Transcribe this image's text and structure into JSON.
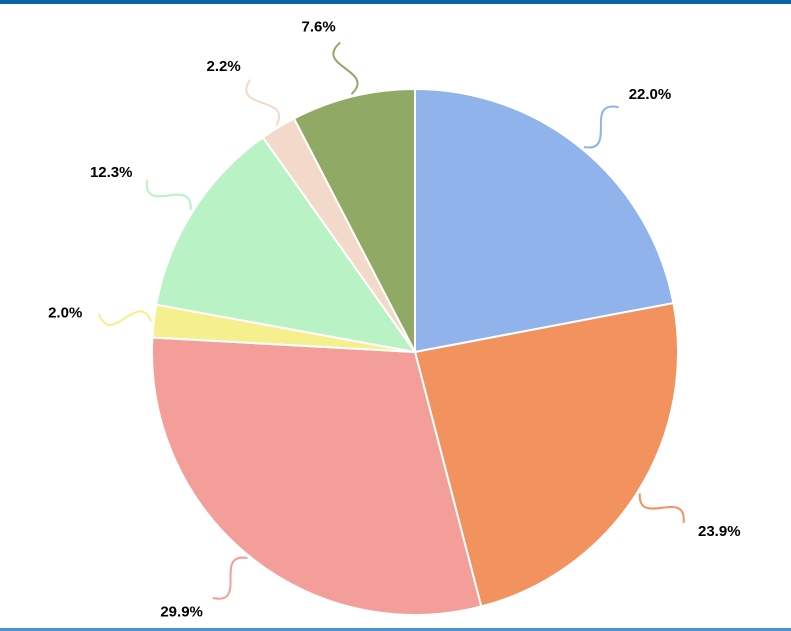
{
  "frame": {
    "top_border_color": "#0b63a8",
    "bottom_border_color": "#4e94d4",
    "background_color": "#ffffff"
  },
  "chart_data": {
    "type": "pie",
    "title": "",
    "legend_position": "none",
    "start_angle": "top",
    "direction": "clockwise",
    "label_format": "percent",
    "label_color": "#000000",
    "slices": [
      {
        "label": "22.0%",
        "value": 22.0,
        "color": "#8fb3ea"
      },
      {
        "label": "23.9%",
        "value": 23.9,
        "color": "#f2925e"
      },
      {
        "label": "29.9%",
        "value": 29.9,
        "color": "#f49e99"
      },
      {
        "label": "2.0%",
        "value": 2.0,
        "color": "#f6ef8d"
      },
      {
        "label": "12.3%",
        "value": 12.3,
        "color": "#b8f2c5"
      },
      {
        "label": "2.2%",
        "value": 2.2,
        "color": "#f3d9c9"
      },
      {
        "label": "7.6%",
        "value": 7.6,
        "color": "#90aa66"
      }
    ]
  }
}
